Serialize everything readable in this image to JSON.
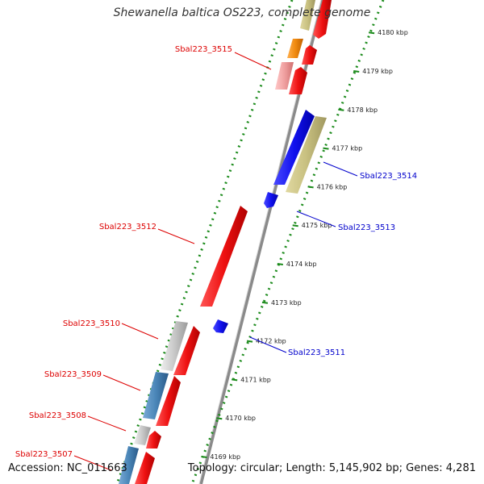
{
  "title": "Shewanella baltica OS223, complete genome",
  "accession": "Accession: NC_011663",
  "topology": "Topology: circular; Length: 5,145,902 bp; Genes: 4,281",
  "colors": {
    "red": "#ee1111",
    "blue": "#1111ee",
    "khaki": "#c8c080",
    "grey": "#c8c8c8",
    "steel": "#4a86b8",
    "orange": "#f08a10",
    "pink": "#f0a0a0",
    "backbone": "#8a8a8a",
    "ticks": "#1a8a1a",
    "label_red": "#dd0000",
    "label_blue": "#0000cc"
  },
  "scale": {
    "ticks": [
      {
        "kbp": 4169,
        "label": "4169 kbp"
      },
      {
        "kbp": 4170,
        "label": "4170 kbp"
      },
      {
        "kbp": 4171,
        "label": "4171 kbp"
      },
      {
        "kbp": 4172,
        "label": "4172 kbp"
      },
      {
        "kbp": 4173,
        "label": "4173 kbp"
      },
      {
        "kbp": 4174,
        "label": "4174 kbp"
      },
      {
        "kbp": 4175,
        "label": "4175 kbp"
      },
      {
        "kbp": 4176,
        "label": "4176 kbp"
      },
      {
        "kbp": 4177,
        "label": "4177 kbp"
      },
      {
        "kbp": 4178,
        "label": "4178 kbp"
      },
      {
        "kbp": 4179,
        "label": "4179 kbp"
      },
      {
        "kbp": 4180,
        "label": "4180 kbp"
      }
    ]
  },
  "gene_labels": {
    "l1": "Sbal223_3515",
    "l2": "Sbal223_3514",
    "l3": "Sbal223_3513",
    "l4": "Sbal223_3512",
    "l5": "Sbal223_3510",
    "l6": "Sbal223_3511",
    "l7": "Sbal223_3509",
    "l8": "Sbal223_3508",
    "l9": "Sbal223_3507"
  }
}
